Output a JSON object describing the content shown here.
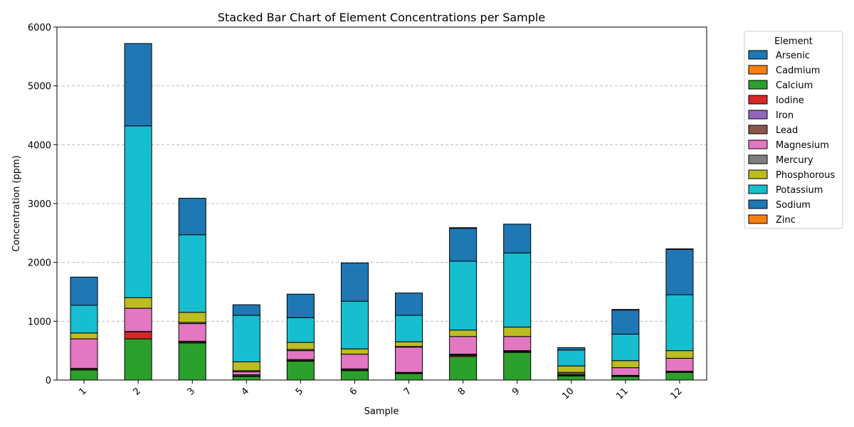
{
  "chart_data": {
    "type": "bar",
    "stacked": true,
    "title": "Stacked Bar Chart of Element Concentrations per Sample",
    "xlabel": "Sample",
    "ylabel": "Concentration (ppm)",
    "ylim": [
      0,
      6000
    ],
    "yticks": [
      0,
      1000,
      2000,
      3000,
      4000,
      5000,
      6000
    ],
    "grid": "y-dashed",
    "legend_title": "Element",
    "legend_position": "outside-right",
    "categories": [
      "1",
      "2",
      "3",
      "4",
      "5",
      "6",
      "7",
      "8",
      "9",
      "10",
      "11",
      "12"
    ],
    "series": [
      {
        "name": "Arsenic",
        "color": "#1f77b4",
        "values": [
          0,
          0,
          0,
          0,
          0,
          0,
          0,
          0,
          0,
          0,
          0,
          0
        ]
      },
      {
        "name": "Cadmium",
        "color": "#ff7f0e",
        "values": [
          0,
          0,
          0,
          0,
          0,
          0,
          0,
          0,
          0,
          0,
          0,
          0
        ]
      },
      {
        "name": "Calcium",
        "color": "#2ca02c",
        "values": [
          170,
          700,
          630,
          60,
          320,
          160,
          110,
          400,
          470,
          70,
          60,
          130
        ]
      },
      {
        "name": "Iodine",
        "color": "#d62728",
        "values": [
          5,
          120,
          5,
          5,
          5,
          5,
          5,
          20,
          10,
          5,
          5,
          5
        ]
      },
      {
        "name": "Iron",
        "color": "#9467bd",
        "values": [
          5,
          5,
          5,
          5,
          5,
          5,
          5,
          5,
          5,
          5,
          5,
          5
        ]
      },
      {
        "name": "Lead",
        "color": "#8c564b",
        "values": [
          20,
          0,
          20,
          20,
          20,
          20,
          10,
          15,
          15,
          20,
          10,
          10
        ]
      },
      {
        "name": "Magnesium",
        "color": "#e377c2",
        "values": [
          500,
          395,
          300,
          50,
          150,
          250,
          430,
          300,
          240,
          0,
          130,
          220
        ]
      },
      {
        "name": "Mercury",
        "color": "#7f7f7f",
        "values": [
          0,
          0,
          20,
          20,
          20,
          0,
          10,
          0,
          0,
          30,
          0,
          0
        ]
      },
      {
        "name": "Phosphorous",
        "color": "#bcbd22",
        "values": [
          100,
          180,
          170,
          150,
          120,
          90,
          80,
          110,
          160,
          110,
          120,
          130
        ]
      },
      {
        "name": "Potassium",
        "color": "#17becf",
        "values": [
          470,
          2920,
          1320,
          790,
          420,
          810,
          450,
          1170,
          1260,
          270,
          450,
          950
        ]
      },
      {
        "name": "Sodium",
        "color": "#1f77b4",
        "values": [
          480,
          1400,
          620,
          180,
          400,
          650,
          380,
          560,
          490,
          40,
          410,
          770
        ]
      },
      {
        "name": "Zinc",
        "color": "#ff7f0e",
        "values": [
          0,
          0,
          0,
          0,
          0,
          0,
          0,
          10,
          0,
          0,
          10,
          10
        ]
      }
    ]
  }
}
